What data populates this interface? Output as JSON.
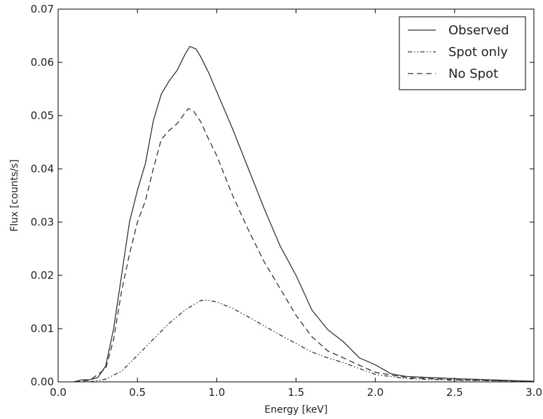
{
  "chart_data": {
    "type": "line",
    "title": "",
    "xlabel": "Energy [keV]",
    "ylabel": "Flux [counts/s]",
    "xlim": [
      0.0,
      3.0
    ],
    "ylim": [
      0.0,
      0.07
    ],
    "x_ticks": [
      "0.0",
      "0.5",
      "1.0",
      "1.5",
      "2.0",
      "2.5",
      "3.0"
    ],
    "y_ticks": [
      "0.00",
      "0.01",
      "0.02",
      "0.03",
      "0.04",
      "0.05",
      "0.06",
      "0.07"
    ],
    "grid": false,
    "legend_position": "top-right",
    "series": [
      {
        "name": "Observed",
        "style": "solid",
        "color": "#333333",
        "points": [
          [
            0.1,
            0.0
          ],
          [
            0.15,
            0.0004
          ],
          [
            0.2,
            0.0004
          ],
          [
            0.25,
            0.0008
          ],
          [
            0.3,
            0.003
          ],
          [
            0.35,
            0.01
          ],
          [
            0.4,
            0.02
          ],
          [
            0.45,
            0.03
          ],
          [
            0.5,
            0.036
          ],
          [
            0.55,
            0.041
          ],
          [
            0.6,
            0.049
          ],
          [
            0.65,
            0.054
          ],
          [
            0.7,
            0.0565
          ],
          [
            0.75,
            0.0585
          ],
          [
            0.8,
            0.0615
          ],
          [
            0.83,
            0.063
          ],
          [
            0.87,
            0.0625
          ],
          [
            0.9,
            0.061
          ],
          [
            0.95,
            0.058
          ],
          [
            1.0,
            0.0545
          ],
          [
            1.1,
            0.0475
          ],
          [
            1.2,
            0.04
          ],
          [
            1.3,
            0.0325
          ],
          [
            1.4,
            0.0255
          ],
          [
            1.5,
            0.02
          ],
          [
            1.6,
            0.0135
          ],
          [
            1.7,
            0.0098
          ],
          [
            1.8,
            0.0075
          ],
          [
            1.85,
            0.006
          ],
          [
            1.9,
            0.0045
          ],
          [
            2.0,
            0.0032
          ],
          [
            2.1,
            0.0015
          ],
          [
            2.2,
            0.001
          ],
          [
            2.5,
            0.0006
          ],
          [
            2.8,
            0.0003
          ],
          [
            3.0,
            0.0001
          ]
        ]
      },
      {
        "name": "Spot only",
        "style": "dashdot",
        "color": "#333333",
        "points": [
          [
            0.2,
            0.0
          ],
          [
            0.3,
            0.0005
          ],
          [
            0.4,
            0.002
          ],
          [
            0.5,
            0.005
          ],
          [
            0.6,
            0.008
          ],
          [
            0.7,
            0.011
          ],
          [
            0.8,
            0.0135
          ],
          [
            0.9,
            0.0153
          ],
          [
            0.95,
            0.0153
          ],
          [
            1.0,
            0.015
          ],
          [
            1.1,
            0.0138
          ],
          [
            1.2,
            0.0122
          ],
          [
            1.3,
            0.0105
          ],
          [
            1.4,
            0.0088
          ],
          [
            1.5,
            0.0072
          ],
          [
            1.6,
            0.0056
          ],
          [
            1.7,
            0.0045
          ],
          [
            1.8,
            0.0036
          ],
          [
            1.9,
            0.0025
          ],
          [
            2.0,
            0.0014
          ],
          [
            2.2,
            0.0006
          ],
          [
            2.5,
            0.0003
          ],
          [
            3.0,
            0.0001
          ]
        ]
      },
      {
        "name": "No Spot",
        "style": "dashed",
        "color": "#333333",
        "points": [
          [
            0.1,
            0.0
          ],
          [
            0.2,
            0.0003
          ],
          [
            0.3,
            0.0025
          ],
          [
            0.35,
            0.008
          ],
          [
            0.4,
            0.017
          ],
          [
            0.45,
            0.024
          ],
          [
            0.5,
            0.03
          ],
          [
            0.55,
            0.034
          ],
          [
            0.6,
            0.04
          ],
          [
            0.65,
            0.0455
          ],
          [
            0.7,
            0.0472
          ],
          [
            0.75,
            0.0485
          ],
          [
            0.8,
            0.0505
          ],
          [
            0.82,
            0.0513
          ],
          [
            0.85,
            0.051
          ],
          [
            0.9,
            0.0488
          ],
          [
            0.95,
            0.0455
          ],
          [
            1.0,
            0.0425
          ],
          [
            1.1,
            0.035
          ],
          [
            1.2,
            0.0285
          ],
          [
            1.3,
            0.0225
          ],
          [
            1.4,
            0.0175
          ],
          [
            1.5,
            0.0125
          ],
          [
            1.6,
            0.0085
          ],
          [
            1.7,
            0.0058
          ],
          [
            1.8,
            0.0045
          ],
          [
            1.9,
            0.0031
          ],
          [
            2.0,
            0.0018
          ],
          [
            2.2,
            0.0008
          ],
          [
            2.5,
            0.0004
          ],
          [
            3.0,
            0.0001
          ]
        ]
      }
    ]
  }
}
